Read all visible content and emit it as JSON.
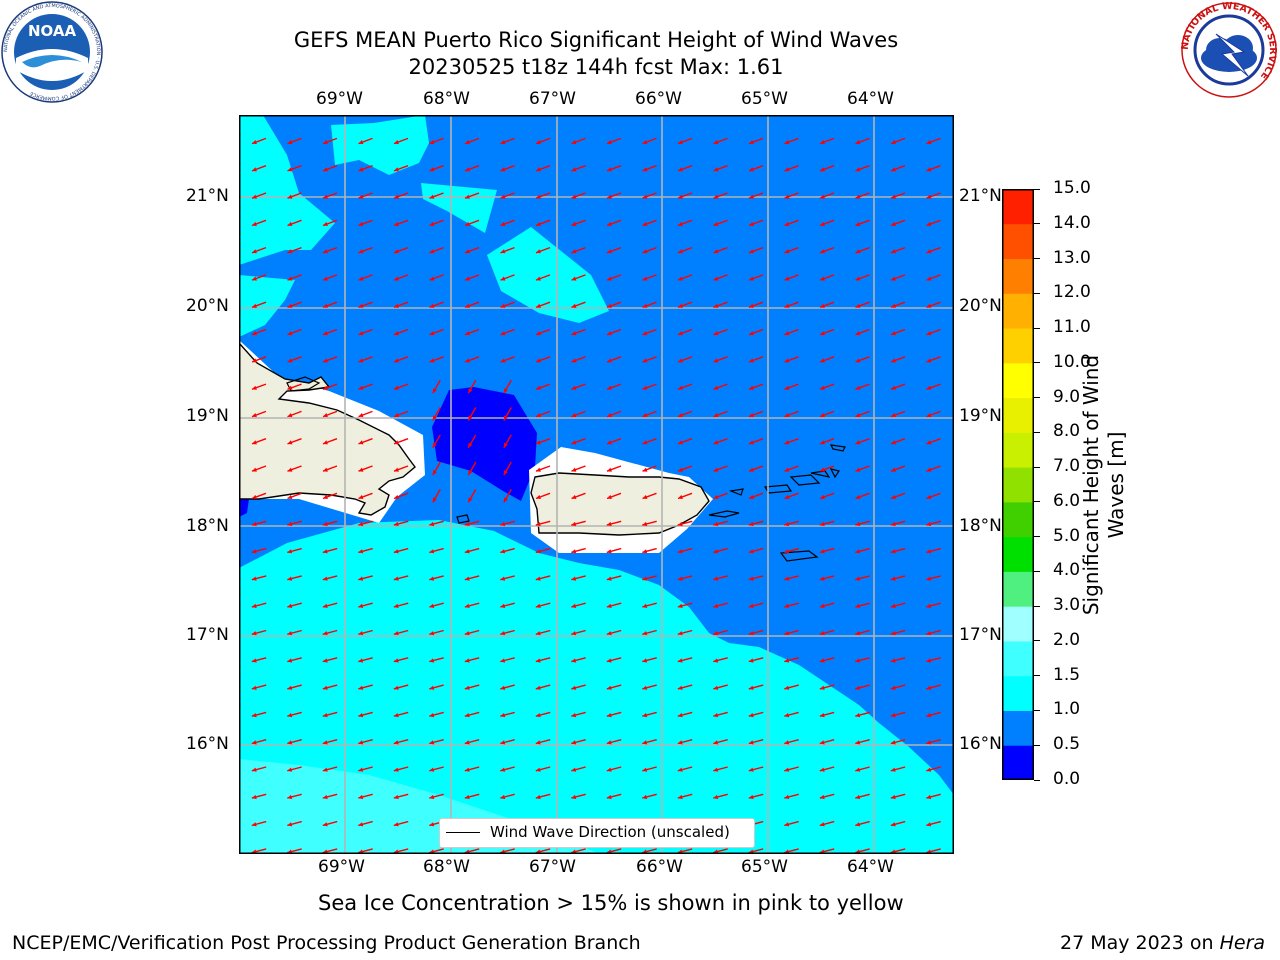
{
  "title": {
    "line1": "GEFS MEAN Puerto Rico Significant Height of Wind Waves",
    "line2": "20230525 t18z 144h fcst   Max: 1.61"
  },
  "logos": {
    "noaa_text": "NOAA",
    "noaa_ring": "NATIONAL OCEANIC AND ATMOSPHERIC ADMINISTRATION · U.S. DEPARTMENT OF COMMERCE",
    "nws_ring": "NATIONAL WEATHER SERVICE"
  },
  "map": {
    "lon_labels": [
      "69°W",
      "68°W",
      "67°W",
      "66°W",
      "65°W",
      "64°W"
    ],
    "lat_labels": [
      "21°N",
      "20°N",
      "19°N",
      "18°N",
      "17°N",
      "16°N"
    ],
    "legend_text": "Wind Wave Direction (unscaled)",
    "arrow_color": "#ff0000",
    "arrow_direction": "toward west-southwest"
  },
  "colorbar": {
    "label": "Significant Height of Wind Waves [m]",
    "levels": [
      "0.0",
      "0.5",
      "1.0",
      "1.5",
      "2.0",
      "3.0",
      "4.0",
      "5.0",
      "6.0",
      "7.0",
      "8.0",
      "9.0",
      "10.0",
      "11.0",
      "12.0",
      "13.0",
      "14.0",
      "15.0"
    ],
    "colors": [
      "#0000ff",
      "#0080ff",
      "#00ffff",
      "#40ffff",
      "#a0ffff",
      "#50f080",
      "#00e000",
      "#40d000",
      "#90e000",
      "#c8f000",
      "#e8f000",
      "#ffff00",
      "#ffd000",
      "#ffb000",
      "#ff8000",
      "#ff5000",
      "#ff2000"
    ]
  },
  "fill_colors": {
    "land": "#efefdf",
    "dark_blue": "#0000ff",
    "mid_blue": "#0080ff",
    "cyan": "#00ffff",
    "light_cyan": "#40ffff"
  },
  "subtitle": "Sea Ice Concentration > 15% is shown in pink to yellow",
  "footer": {
    "left": "NCEP/EMC/Verification Post Processing Product Generation Branch",
    "right_date": "27 May 2023 on ",
    "right_host": "Hera"
  }
}
